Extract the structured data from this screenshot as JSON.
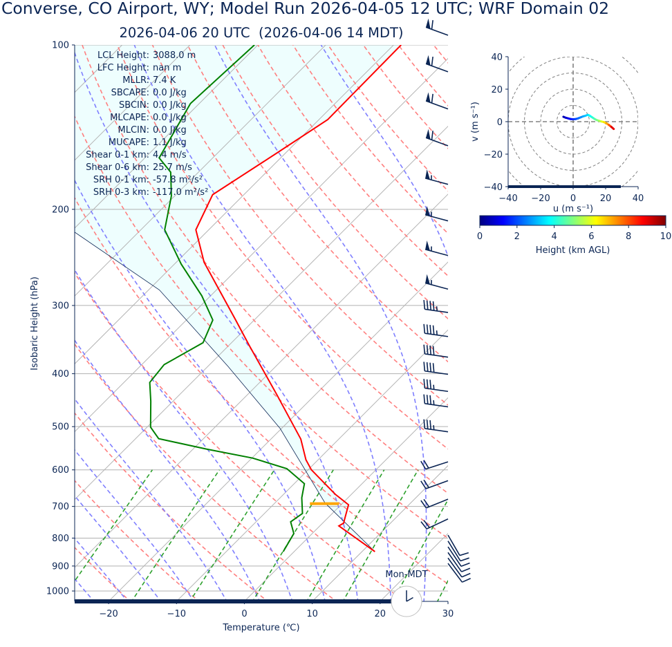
{
  "header": {
    "title": "Converse, CO Airport, WY; Model Run 2026-04-05 12 UTC; WRF Domain 02",
    "subtitle": "2026-04-06 20 UTC  (2026-04-06 14 MDT)"
  },
  "stats": [
    {
      "label": "LCL Height:",
      "value": "3088.0 m"
    },
    {
      "label": "LFC Height:",
      "value": "nan m"
    },
    {
      "label": "MLLR:",
      "value": "7.4 K"
    },
    {
      "label": "SBCAPE:",
      "value": "0.0 J/kg"
    },
    {
      "label": "SBCIN:",
      "value": "0.0 J/kg"
    },
    {
      "label": "MLCAPE:",
      "value": "0.0 J/kg"
    },
    {
      "label": "MLCIN:",
      "value": "0.0 J/kg"
    },
    {
      "label": "MUCAPE:",
      "value": "1.1 J/kg"
    },
    {
      "label": "Shear 0-1 km:",
      "value": "4.4 m/s"
    },
    {
      "label": "Shear 0-6 km:",
      "value": "25.7 m/s"
    },
    {
      "label": "SRH 0-1 km:",
      "value": "-57.8 m²/s²"
    },
    {
      "label": "SRH 0-3 km:",
      "value": "-117.0 m²/s²"
    }
  ],
  "chart_data": {
    "type": "skewt",
    "xlabel": "Temperature (℃)",
    "ylabel": "Isobaric Height (hPa)",
    "xlim": [
      -25,
      30
    ],
    "ylim": [
      1050,
      100
    ],
    "xticks": [
      -20,
      -10,
      0,
      10,
      20,
      30
    ],
    "xtick_labels": [
      "−20",
      "−10",
      "0",
      "10",
      "20",
      "30"
    ],
    "yticks": [
      100,
      200,
      300,
      400,
      500,
      600,
      700,
      800,
      900,
      1000
    ],
    "grid": true,
    "colors": {
      "temperature": "#ff0000",
      "dewpoint": "#008000",
      "parcel": "#0b2554",
      "dry_adiabat": "#ff7f7f",
      "moist_adiabat": "#7f7fff",
      "mixing_ratio": "#2ca02c",
      "isotherm": "#b4b4b4",
      "shade": "#eefefe",
      "lcl": "#ffa500",
      "text": "#0b2554"
    },
    "temperature": {
      "p": [
        847,
        760,
        751,
        740,
        695,
        665,
        600,
        575,
        527,
        436,
        355,
        318,
        250,
        218,
        188,
        158,
        137,
        100
      ],
      "T": [
        11.9,
        2.8,
        3.1,
        2.7,
        1.1,
        -2.4,
        -9.5,
        -11.8,
        -15.6,
        -25.8,
        -37.0,
        -42.9,
        -55.9,
        -61.9,
        -64.6,
        -61.3,
        -58.7,
        -58.9
      ]
    },
    "dewpoint": {
      "p": [
        847,
        785,
        747,
        721,
        675,
        636,
        597,
        571,
        550,
        526,
        501,
        449,
        415,
        385,
        351,
        319,
        288,
        252,
        218,
        189,
        171,
        161,
        128,
        100
      ],
      "Td": [
        -1.6,
        -2.7,
        -4.9,
        -4.4,
        -6.8,
        -8.5,
        -13.3,
        -19.9,
        -27.9,
        -36.6,
        -39.5,
        -43.3,
        -46.2,
        -46.7,
        -44.2,
        -46.1,
        -51.3,
        -59.0,
        -66.5,
        -70.5,
        -74.1,
        -77.9,
        -81.3,
        -80.5
      ]
    },
    "parcel": {
      "p": [
        847,
        690,
        504,
        388,
        281,
        220,
        150,
        100
      ],
      "T": [
        11.9,
        -2.6,
        -20.2,
        -37.0,
        -58.4,
        -79.5,
        -105,
        -125
      ]
    },
    "lcl": {
      "p": 692,
      "T": -2.6
    },
    "dry_adiabats_theta_c": [
      -30,
      -20,
      -10,
      0,
      10,
      20,
      30,
      40,
      50,
      60,
      70,
      80,
      90,
      100,
      110,
      120,
      130,
      140,
      150,
      160,
      170,
      180
    ],
    "moist_adiabats_t0_c": [
      -30,
      -25,
      -20,
      -15,
      -10,
      -5,
      0,
      5,
      10,
      15,
      20,
      25,
      30,
      35
    ],
    "mixing_ratios": [
      0.0004,
      0.001,
      0.002,
      0.004,
      0.007,
      0.01,
      0.016,
      0.024,
      0.032
    ],
    "isotherms_c": [
      -120,
      -110,
      -100,
      -90,
      -80,
      -70,
      -60,
      -50,
      -40,
      -30,
      -20,
      -10,
      0,
      10,
      20,
      30
    ],
    "winds": [
      {
        "p": 96,
        "dir": 290,
        "speed_kt": 60
      },
      {
        "p": 112,
        "dir": 290,
        "speed_kt": 60
      },
      {
        "p": 131,
        "dir": 290,
        "speed_kt": 60
      },
      {
        "p": 153,
        "dir": 290,
        "speed_kt": 60
      },
      {
        "p": 180,
        "dir": 285,
        "speed_kt": 55
      },
      {
        "p": 210,
        "dir": 285,
        "speed_kt": 55
      },
      {
        "p": 243,
        "dir": 285,
        "speed_kt": 55
      },
      {
        "p": 280,
        "dir": 285,
        "speed_kt": 55
      },
      {
        "p": 309,
        "dir": 278,
        "speed_kt": 45
      },
      {
        "p": 342,
        "dir": 278,
        "speed_kt": 45
      },
      {
        "p": 373,
        "dir": 278,
        "speed_kt": 40
      },
      {
        "p": 401,
        "dir": 278,
        "speed_kt": 40
      },
      {
        "p": 431,
        "dir": 278,
        "speed_kt": 35
      },
      {
        "p": 460,
        "dir": 278,
        "speed_kt": 35
      },
      {
        "p": 511,
        "dir": 278,
        "speed_kt": 35
      },
      {
        "p": 580,
        "dir": 252,
        "speed_kt": 20
      },
      {
        "p": 628,
        "dir": 250,
        "speed_kt": 20
      },
      {
        "p": 679,
        "dir": 248,
        "speed_kt": 20
      },
      {
        "p": 738,
        "dir": 245,
        "speed_kt": 20
      },
      {
        "p": 790,
        "dir": 150,
        "speed_kt": 10
      },
      {
        "p": 810,
        "dir": 148,
        "speed_kt": 10
      },
      {
        "p": 830,
        "dir": 146,
        "speed_kt": 10
      },
      {
        "p": 850,
        "dir": 145,
        "speed_kt": 10
      },
      {
        "p": 870,
        "dir": 144,
        "speed_kt": 10
      },
      {
        "p": 890,
        "dir": 143,
        "speed_kt": 10
      }
    ],
    "clock": {
      "label": "Mon-MDT",
      "hour": 14,
      "minute": 0
    },
    "hodograph": {
      "xlabel": "u (m s⁻¹)",
      "ylabel": "v (m s⁻¹)",
      "xlim": [
        -40,
        40
      ],
      "ylim": [
        -40,
        40
      ],
      "ticks": [
        -40,
        -20,
        0,
        20,
        40
      ],
      "tick_labels": [
        "−40",
        "−20",
        "0",
        "20",
        "40"
      ],
      "rings": [
        10,
        20,
        30,
        40,
        50
      ],
      "u": [
        -6,
        -4.5,
        -3,
        -1.5,
        0,
        1.5,
        3,
        4.5,
        6,
        7.5,
        9,
        10,
        11.5,
        13,
        14.5,
        16,
        17.5,
        19,
        20.5,
        22,
        23.5,
        25
      ],
      "v": [
        3,
        2.4,
        2,
        1.6,
        1.5,
        1.6,
        2,
        2.6,
        3.2,
        3.6,
        4.2,
        3.8,
        2.8,
        1.8,
        1.0,
        0.5,
        0.1,
        -0.3,
        -1.0,
        -2.0,
        -3.2,
        -4.5
      ],
      "height_km": [
        0.2,
        0.5,
        0.8,
        1.1,
        1.4,
        1.7,
        2.0,
        2.3,
        2.6,
        2.9,
        3.2,
        3.5,
        3.8,
        4.2,
        4.6,
        5.0,
        5.5,
        6.0,
        6.6,
        7.2,
        8.0,
        9.0
      ],
      "colorbar": {
        "label": "Height (km AGL)",
        "range": [
          0,
          10
        ],
        "ticks": [
          0,
          2,
          4,
          6,
          8,
          10
        ]
      }
    }
  }
}
